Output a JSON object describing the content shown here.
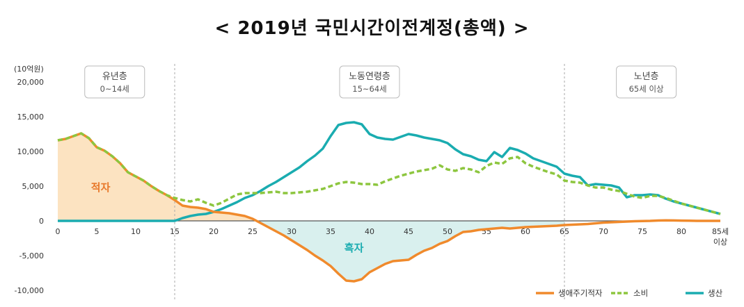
{
  "chart_data": {
    "type": "line",
    "title": "< 2019년  국민시간이전계정(총액) >",
    "unit_label": "(10억원)",
    "xlabel": "",
    "ylabel": "",
    "xlim": [
      0,
      85
    ],
    "ylim": [
      -10000,
      20000
    ],
    "y_ticks": [
      {
        "value": 20000,
        "label": "20,000"
      },
      {
        "value": 15000,
        "label": "15,000"
      },
      {
        "value": 10000,
        "label": "10,000"
      },
      {
        "value": 5000,
        "label": "5,000"
      },
      {
        "value": 0,
        "label": "0"
      },
      {
        "value": -5000,
        "label": "-5,000"
      },
      {
        "value": -10000,
        "label": "-10,000"
      }
    ],
    "x_ticks": [
      {
        "value": 0,
        "label": "0"
      },
      {
        "value": 5,
        "label": "5"
      },
      {
        "value": 10,
        "label": "10"
      },
      {
        "value": 15,
        "label": "15"
      },
      {
        "value": 20,
        "label": "20"
      },
      {
        "value": 25,
        "label": "25"
      },
      {
        "value": 30,
        "label": "30"
      },
      {
        "value": 35,
        "label": "35"
      },
      {
        "value": 40,
        "label": "40"
      },
      {
        "value": 45,
        "label": "45"
      },
      {
        "value": 50,
        "label": "50"
      },
      {
        "value": 55,
        "label": "55"
      },
      {
        "value": 60,
        "label": "60"
      },
      {
        "value": 65,
        "label": "65"
      },
      {
        "value": 70,
        "label": "70"
      },
      {
        "value": 75,
        "label": "75"
      },
      {
        "value": 80,
        "label": "80"
      }
    ],
    "x_last_label": {
      "value": 85,
      "line1": "85세",
      "line2": "이상"
    },
    "x": [
      0,
      1,
      2,
      3,
      4,
      5,
      6,
      7,
      8,
      9,
      10,
      11,
      12,
      13,
      14,
      15,
      16,
      17,
      18,
      19,
      20,
      21,
      22,
      23,
      24,
      25,
      26,
      27,
      28,
      29,
      30,
      31,
      32,
      33,
      34,
      35,
      36,
      37,
      38,
      39,
      40,
      41,
      42,
      43,
      44,
      45,
      46,
      47,
      48,
      49,
      50,
      51,
      52,
      53,
      54,
      55,
      56,
      57,
      58,
      59,
      60,
      61,
      62,
      63,
      64,
      65,
      66,
      67,
      68,
      69,
      70,
      71,
      72,
      73,
      74,
      75,
      76,
      77,
      78,
      79,
      80,
      81,
      82,
      83,
      84,
      85
    ],
    "series": [
      {
        "name": "생애주기적자",
        "color": "#f08a2c",
        "dash": false,
        "values": [
          11600,
          11800,
          12200,
          12600,
          11900,
          10600,
          10100,
          9300,
          8300,
          7000,
          6400,
          5800,
          5000,
          4300,
          3700,
          3000,
          2200,
          2000,
          1900,
          1700,
          1300,
          1200,
          1100,
          900,
          700,
          300,
          -300,
          -900,
          -1500,
          -2100,
          -2800,
          -3500,
          -4200,
          -5000,
          -5700,
          -6500,
          -7600,
          -8600,
          -8700,
          -8400,
          -7400,
          -6800,
          -6200,
          -5800,
          -5700,
          -5600,
          -4900,
          -4300,
          -3900,
          -3300,
          -2900,
          -2200,
          -1600,
          -1500,
          -1300,
          -1200,
          -1100,
          -1000,
          -1100,
          -1000,
          -900,
          -850,
          -800,
          -750,
          -700,
          -600,
          -550,
          -500,
          -450,
          -350,
          -250,
          -200,
          -150,
          -100,
          -50,
          -20,
          0,
          50,
          80,
          60,
          40,
          20,
          0,
          0,
          0,
          0
        ]
      },
      {
        "name": "소비",
        "color": "#8dc63f",
        "dash": true,
        "values": [
          11600,
          11800,
          12200,
          12600,
          11900,
          10600,
          10100,
          9300,
          8300,
          7000,
          6400,
          5800,
          5000,
          4300,
          3700,
          3300,
          3000,
          2800,
          3100,
          2600,
          2200,
          2600,
          3200,
          3800,
          4000,
          4000,
          4000,
          4100,
          4200,
          4000,
          4000,
          4100,
          4200,
          4400,
          4600,
          5000,
          5400,
          5600,
          5500,
          5300,
          5300,
          5200,
          5700,
          6100,
          6500,
          6800,
          7100,
          7300,
          7500,
          8000,
          7400,
          7200,
          7600,
          7400,
          7000,
          7900,
          8400,
          8200,
          9000,
          9200,
          8300,
          7800,
          7400,
          7000,
          6700,
          5800,
          5600,
          5500,
          5100,
          4800,
          4800,
          4500,
          4300,
          3900,
          3500,
          3300,
          3600,
          3600,
          3300,
          2900,
          2500,
          2200,
          1900,
          1600,
          1300,
          1000
        ]
      },
      {
        "name": "생산",
        "color": "#1aacb0",
        "dash": false,
        "values": [
          0,
          0,
          0,
          0,
          0,
          0,
          0,
          0,
          0,
          0,
          0,
          0,
          0,
          0,
          0,
          0,
          400,
          700,
          900,
          1000,
          1300,
          1700,
          2200,
          2700,
          3300,
          3700,
          4300,
          5000,
          5600,
          6300,
          7000,
          7700,
          8600,
          9400,
          10400,
          12200,
          13800,
          14100,
          14200,
          13900,
          12500,
          12000,
          11800,
          11700,
          12100,
          12500,
          12300,
          12000,
          11800,
          11600,
          11200,
          10300,
          9600,
          9300,
          8800,
          8600,
          9900,
          9200,
          10500,
          10200,
          9700,
          9000,
          8600,
          8200,
          7800,
          6800,
          6500,
          6300,
          5100,
          5300,
          5200,
          5100,
          4800,
          3400,
          3700,
          3700,
          3800,
          3700,
          3200,
          2800,
          2500,
          2200,
          1900,
          1600,
          1300,
          1000
        ]
      }
    ],
    "stages": [
      {
        "title": "유년층",
        "range": "0~14세",
        "x_center": 7.3
      },
      {
        "title": "노동연령층",
        "range": "15~64세",
        "x_center": 40
      },
      {
        "title": "노년층",
        "range": "65세 이상",
        "x_center": 75.5
      }
    ],
    "dividers": [
      15,
      65
    ],
    "annotations": [
      {
        "text": "적자",
        "x": 5.5,
        "y": 4300,
        "color": "#e8792b"
      },
      {
        "text": "흑자",
        "x": 38,
        "y": -4400,
        "color": "#1aacb0"
      }
    ],
    "fill_colors": {
      "deficit": "#fce3c1",
      "surplus": "#d9f0ee"
    },
    "legend": {
      "position": "bottom-right"
    }
  }
}
